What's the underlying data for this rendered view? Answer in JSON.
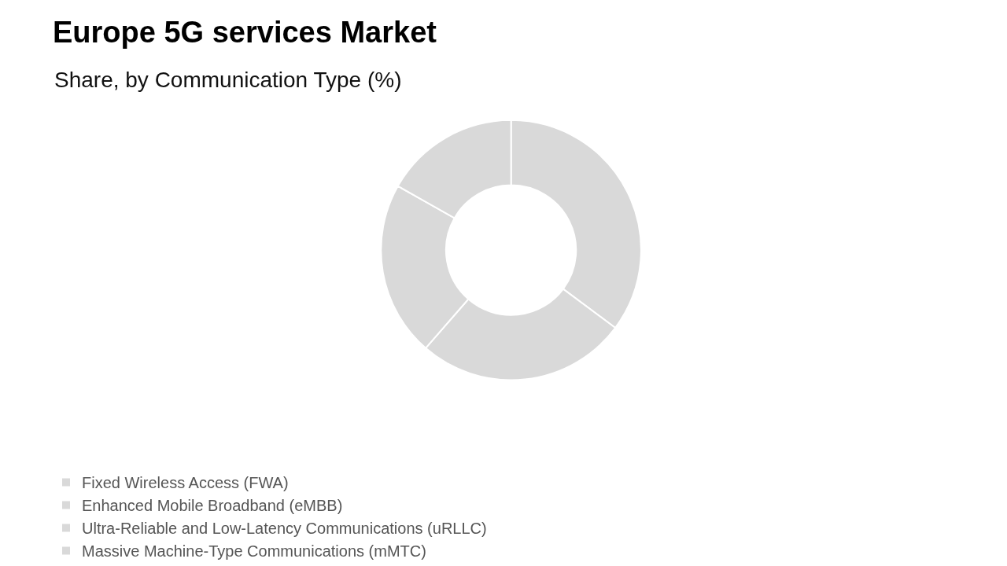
{
  "chart_data": {
    "type": "donut",
    "title": "Europe 5G services Market",
    "subtitle": "Share, by Communication Type (%)",
    "categories": [
      "Fixed Wireless Access (FWA)",
      "Enhanced Mobile Broadband (eMBB)",
      "Ultra-Reliable and Low-Latency Communications (uRLLC)",
      "Massive Machine-Type Communications (mMTC)"
    ],
    "values": [
      35.2,
      26.2,
      21.8,
      16.8
    ],
    "colors": [
      "#d9d9d9",
      "#d9d9d9",
      "#d9d9d9",
      "#d9d9d9"
    ],
    "legend": "bottom"
  }
}
